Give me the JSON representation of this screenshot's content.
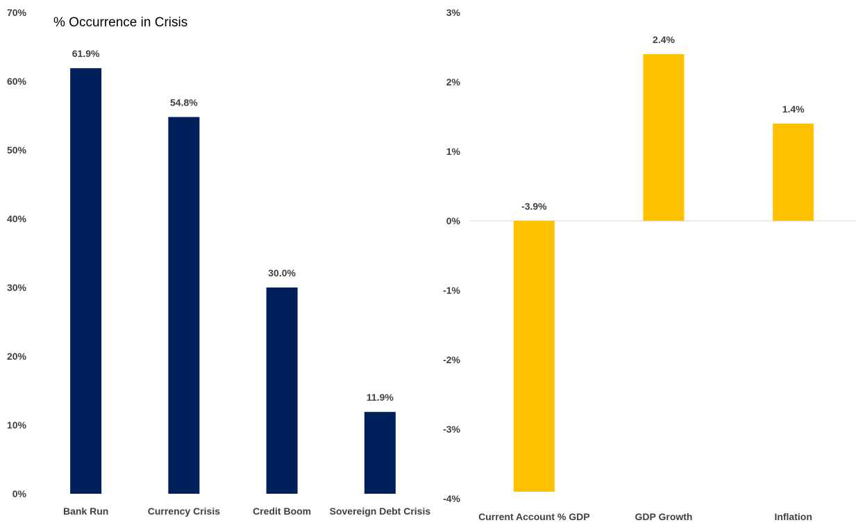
{
  "chart_data": [
    {
      "type": "bar",
      "title": "% Occurrence in Crisis",
      "categories": [
        "Bank Run",
        "Currency Crisis",
        "Credit Boom",
        "Sovereign Debt Crisis"
      ],
      "values": [
        61.9,
        54.8,
        30.0,
        11.9
      ],
      "data_labels": [
        "61.9%",
        "54.8%",
        "30.0%",
        "11.9%"
      ],
      "ylim": [
        0,
        70
      ],
      "yticks": [
        0,
        10,
        20,
        30,
        40,
        50,
        60,
        70
      ],
      "ytick_labels": [
        "0%",
        "10%",
        "20%",
        "30%",
        "40%",
        "50%",
        "60%",
        "70%"
      ],
      "grid": false,
      "color": "#00205B"
    },
    {
      "type": "bar",
      "title": "",
      "categories": [
        "Current Account % GDP",
        "GDP Growth",
        "Inflation"
      ],
      "values": [
        -3.9,
        2.4,
        1.4
      ],
      "data_labels": [
        "-3.9%",
        "2.4%",
        "1.4%"
      ],
      "ylim": [
        -4,
        3
      ],
      "yticks": [
        -4,
        -3,
        -2,
        -1,
        0,
        1,
        2,
        3
      ],
      "ytick_labels": [
        "-4%",
        "-3%",
        "-2%",
        "-1%",
        "0%",
        "1%",
        "2%",
        "3%"
      ],
      "grid": false,
      "color": "#FFC000"
    }
  ]
}
